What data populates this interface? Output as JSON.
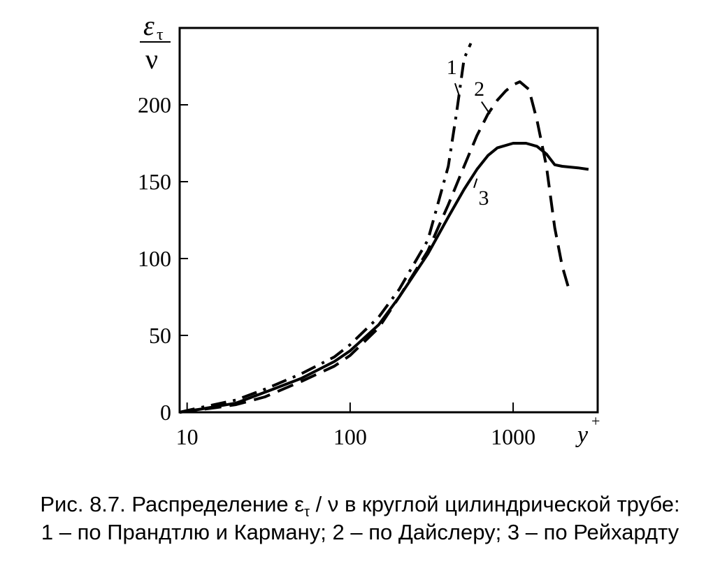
{
  "chart_data": {
    "type": "line",
    "x_scale": "log",
    "xlim": [
      9,
      3300
    ],
    "ylim": [
      0,
      250
    ],
    "grid": false,
    "x_ticks": [
      {
        "value": 10,
        "label": "10"
      },
      {
        "value": 100,
        "label": "100"
      },
      {
        "value": 1000,
        "label": "1000"
      }
    ],
    "y_ticks": [
      {
        "value": 0,
        "label": "0"
      },
      {
        "value": 50,
        "label": "50"
      },
      {
        "value": 100,
        "label": "100"
      },
      {
        "value": 150,
        "label": "150"
      },
      {
        "value": 200,
        "label": "200"
      }
    ],
    "xlabel": {
      "main": "y",
      "sup": "+"
    },
    "ylabel": {
      "numerator": "ε",
      "subscript": "τ",
      "denominator": "ν"
    },
    "series": [
      {
        "name": "1",
        "style": "dash-dot",
        "points": [
          [
            9,
            0
          ],
          [
            12,
            3
          ],
          [
            20,
            8
          ],
          [
            30,
            15
          ],
          [
            50,
            25
          ],
          [
            80,
            36
          ],
          [
            100,
            44
          ],
          [
            150,
            62
          ],
          [
            200,
            80
          ],
          [
            300,
            112
          ],
          [
            400,
            160
          ],
          [
            450,
            195
          ],
          [
            500,
            230
          ],
          [
            550,
            240
          ]
        ]
      },
      {
        "name": "2",
        "style": "dashed",
        "points": [
          [
            9,
            0
          ],
          [
            15,
            3
          ],
          [
            20,
            5
          ],
          [
            30,
            10
          ],
          [
            50,
            20
          ],
          [
            80,
            30
          ],
          [
            100,
            37
          ],
          [
            150,
            55
          ],
          [
            200,
            75
          ],
          [
            300,
            105
          ],
          [
            400,
            135
          ],
          [
            500,
            160
          ],
          [
            600,
            180
          ],
          [
            700,
            194
          ],
          [
            800,
            203
          ],
          [
            900,
            209
          ],
          [
            1000,
            213
          ],
          [
            1100,
            215
          ],
          [
            1250,
            210
          ],
          [
            1400,
            190
          ],
          [
            1600,
            160
          ],
          [
            1800,
            120
          ],
          [
            2000,
            95
          ],
          [
            2200,
            80
          ]
        ]
      },
      {
        "name": "3",
        "style": "solid",
        "points": [
          [
            9,
            0
          ],
          [
            12,
            2
          ],
          [
            20,
            6
          ],
          [
            30,
            13
          ],
          [
            50,
            22
          ],
          [
            80,
            33
          ],
          [
            100,
            40
          ],
          [
            150,
            57
          ],
          [
            200,
            75
          ],
          [
            300,
            103
          ],
          [
            400,
            127
          ],
          [
            500,
            145
          ],
          [
            600,
            158
          ],
          [
            700,
            167
          ],
          [
            800,
            172
          ],
          [
            1000,
            175
          ],
          [
            1200,
            175
          ],
          [
            1400,
            173
          ],
          [
            1600,
            168
          ],
          [
            1800,
            161
          ],
          [
            2000,
            160
          ],
          [
            2500,
            159
          ],
          [
            2900,
            158
          ]
        ]
      }
    ],
    "curve_labels": [
      {
        "text": "1",
        "x": 420,
        "y": 220
      },
      {
        "text": "2",
        "x": 620,
        "y": 206
      },
      {
        "text": "3",
        "x": 660,
        "y": 135
      }
    ],
    "leader_lines": [
      {
        "from": [
          440,
          214
        ],
        "to": [
          470,
          205
        ]
      },
      {
        "from": [
          640,
          202
        ],
        "to": [
          720,
          194
        ]
      },
      {
        "from": [
          575,
          146
        ],
        "to": [
          600,
          152
        ]
      }
    ]
  },
  "caption": {
    "line1": {
      "before": "Рис. 8.7. Распределение ε",
      "sub": "τ",
      "after": " / ν  в круглой цилиндрической трубе:"
    },
    "line2": "1 – по Прандтлю и Карману; 2 – по Дайслеру; 3 – по Рейхардту"
  }
}
